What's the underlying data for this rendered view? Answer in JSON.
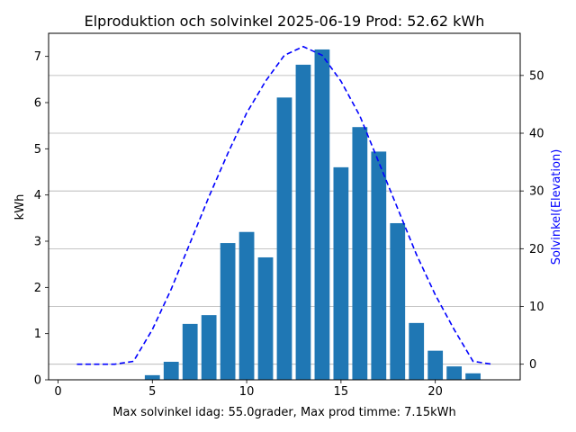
{
  "chart_data": {
    "type": "bar",
    "title": "Elproduktion och solvinkel 2025-06-19 Prod: 52.62 kWh",
    "xlabel": "Max solvinkel idag: 55.0grader, Max prod timme: 7.15kWh",
    "ylabel": "kWh",
    "y2label": "Solvinkel(Elevation)",
    "xlim": [
      -0.5,
      24.5
    ],
    "ylim": [
      0,
      7.5
    ],
    "y2lim": [
      -2.7,
      57.3
    ],
    "xticks": [
      0,
      5,
      10,
      15,
      20
    ],
    "yticks": [
      0,
      1,
      2,
      3,
      4,
      5,
      6,
      7
    ],
    "y2ticks": [
      0,
      10,
      20,
      30,
      40,
      50
    ],
    "grid": "right-axis horizontal",
    "colors": {
      "bars": "#1f77b4",
      "line": "#0000ff",
      "y2label": "#0000ff"
    },
    "bars": {
      "x": [
        5,
        6,
        7,
        8,
        9,
        10,
        11,
        12,
        13,
        14,
        15,
        16,
        17,
        18,
        19,
        20,
        21,
        22
      ],
      "values": [
        0.1,
        0.39,
        1.21,
        1.4,
        2.96,
        3.2,
        2.65,
        6.11,
        6.82,
        7.15,
        4.6,
        5.47,
        4.94,
        3.39,
        1.23,
        0.63,
        0.29,
        0.14
      ]
    },
    "line": {
      "style": "dashed",
      "x": [
        1,
        2,
        3,
        4,
        5,
        6,
        7,
        8,
        9,
        10,
        11,
        12,
        13,
        14,
        15,
        16,
        17,
        18,
        19,
        20,
        21,
        22,
        23
      ],
      "values": [
        0,
        0,
        0,
        0.5,
        6,
        13,
        21,
        29,
        36.5,
        43.5,
        49,
        53.5,
        55,
        53.5,
        49,
        43,
        35,
        27,
        19,
        12,
        6,
        0.5,
        0
      ]
    }
  }
}
